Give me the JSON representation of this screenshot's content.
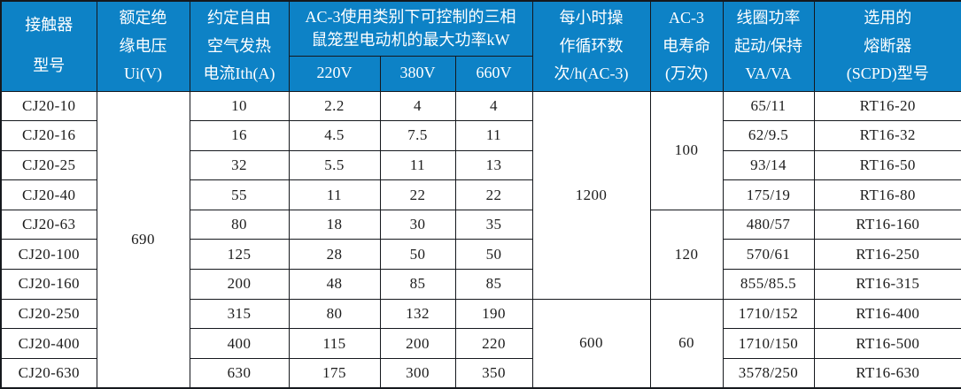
{
  "table": {
    "header": {
      "contactor": "接触器\n型号",
      "insulation": "额定绝\n缘电压\nUi(V)",
      "thermal": "约定自由\n空气发热\n电流Ith(A)",
      "ac3_group": "AC-3使用类别下可控制的三相\n鼠笼型电动机的最大功率kW",
      "v220": "220V",
      "v380": "380V",
      "v660": "660V",
      "cycles": "每小时操\n作循环数\n次/h(AC-3)",
      "life": "AC-3\n电寿命\n(万次)",
      "coil": "线圈功率\n起动/保持\nVA/VA",
      "fuse": "选用的\n熔断器\n(SCPD)型号"
    },
    "rows": [
      {
        "model": "CJ20-10",
        "ith": "10",
        "p220": "2.2",
        "p380": "4",
        "p660": "4",
        "coil": "65/11",
        "fuse": "RT16-20"
      },
      {
        "model": "CJ20-16",
        "ith": "16",
        "p220": "4.5",
        "p380": "7.5",
        "p660": "11",
        "coil": "62/9.5",
        "fuse": "RT16-32"
      },
      {
        "model": "CJ20-25",
        "ith": "32",
        "p220": "5.5",
        "p380": "11",
        "p660": "13",
        "coil": "93/14",
        "fuse": "RT16-50"
      },
      {
        "model": "CJ20-40",
        "ith": "55",
        "p220": "11",
        "p380": "22",
        "p660": "22",
        "coil": "175/19",
        "fuse": "RT16-80"
      },
      {
        "model": "CJ20-63",
        "ith": "80",
        "p220": "18",
        "p380": "30",
        "p660": "35",
        "coil": "480/57",
        "fuse": "RT16-160"
      },
      {
        "model": "CJ20-100",
        "ith": "125",
        "p220": "28",
        "p380": "50",
        "p660": "50",
        "coil": "570/61",
        "fuse": "RT16-250"
      },
      {
        "model": "CJ20-160",
        "ith": "200",
        "p220": "48",
        "p380": "85",
        "p660": "85",
        "coil": "855/85.5",
        "fuse": "RT16-315"
      },
      {
        "model": "CJ20-250",
        "ith": "315",
        "p220": "80",
        "p380": "132",
        "p660": "190",
        "coil": "1710/152",
        "fuse": "RT16-400"
      },
      {
        "model": "CJ20-400",
        "ith": "400",
        "p220": "115",
        "p380": "200",
        "p660": "220",
        "coil": "1710/150",
        "fuse": "RT16-500"
      },
      {
        "model": "CJ20-630",
        "ith": "630",
        "p220": "175",
        "p380": "300",
        "p660": "350",
        "coil": "3578/250",
        "fuse": "RT16-630"
      }
    ],
    "merged": {
      "insulation_voltage": {
        "value": "690",
        "start": 0,
        "span": 10
      },
      "cycles_per_hour": [
        {
          "value": "1200",
          "start": 0,
          "span": 7
        },
        {
          "value": "600",
          "start": 7,
          "span": 3
        }
      ],
      "electrical_life": [
        {
          "value": "100",
          "start": 0,
          "span": 4
        },
        {
          "value": "120",
          "start": 4,
          "span": 3
        },
        {
          "value": "60",
          "start": 7,
          "span": 3
        }
      ]
    },
    "colors": {
      "header_bg": "#0d82c6",
      "header_text": "#ffffff",
      "body_text": "#1c1c1c",
      "border": "#15181d"
    }
  }
}
